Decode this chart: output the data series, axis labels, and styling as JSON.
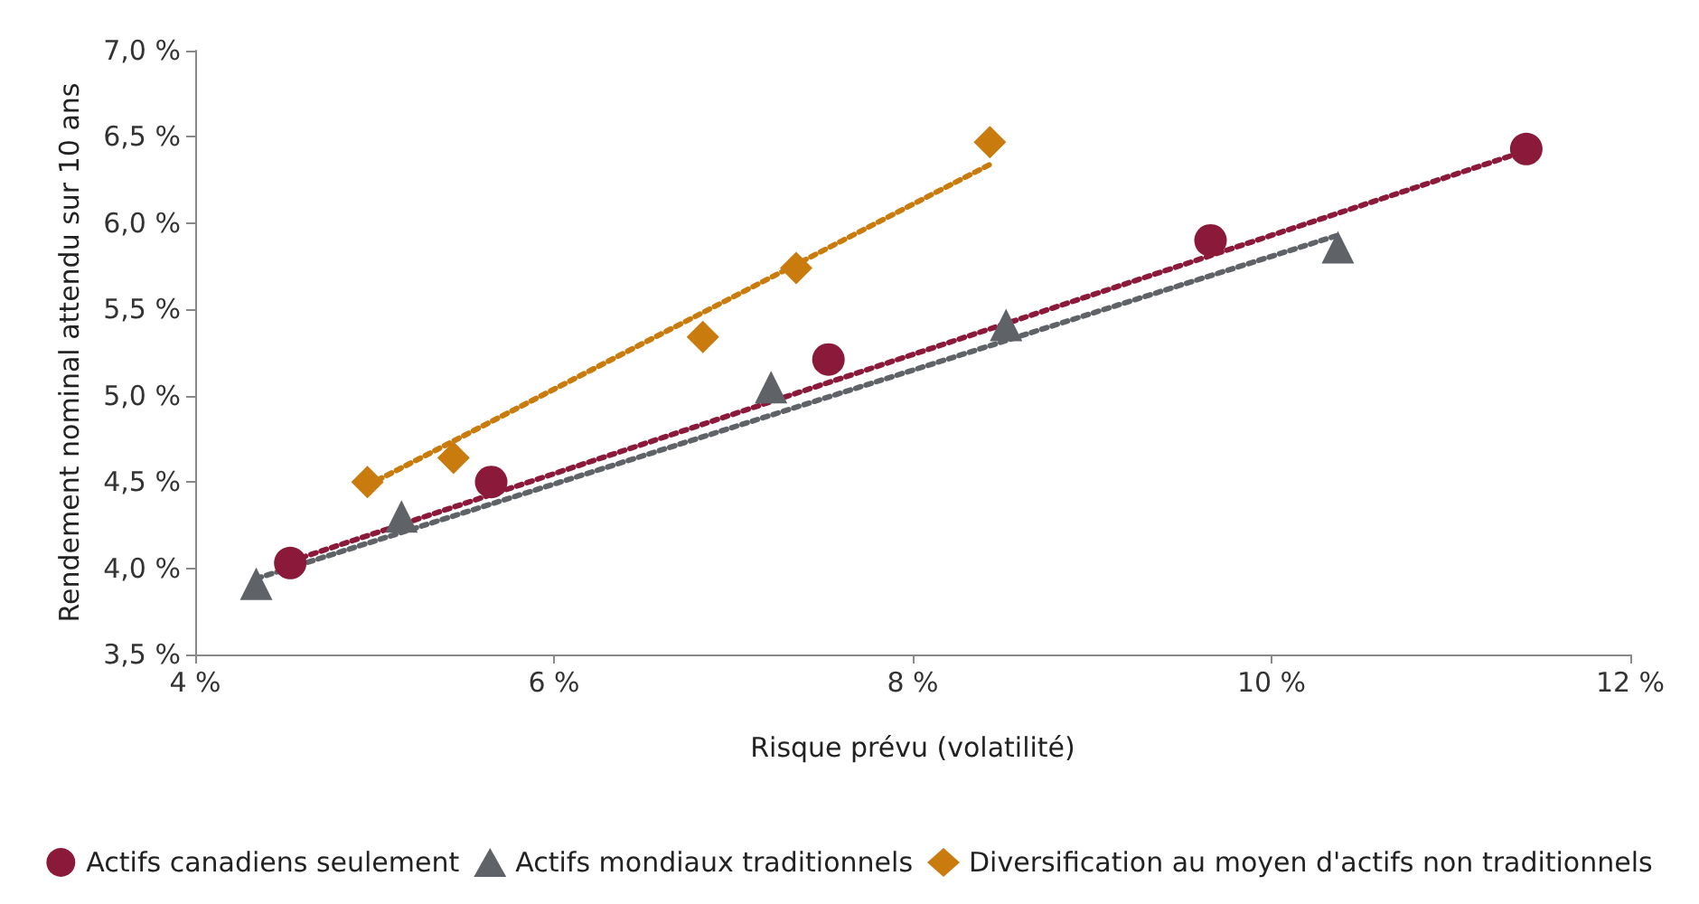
{
  "chart_data": {
    "type": "scatter",
    "xlabel": "Risque prévu (volatilité)",
    "ylabel": "Rendement nominal attendu sur 10 ans",
    "xlim": [
      4,
      12
    ],
    "xticks": [
      {
        "value": 4,
        "label": "4 %"
      },
      {
        "value": 6,
        "label": "6 %"
      },
      {
        "value": 8,
        "label": "8 %"
      },
      {
        "value": 10,
        "label": "10 %"
      },
      {
        "value": 12,
        "label": "12 %"
      }
    ],
    "ylim": [
      3.5,
      7
    ],
    "yticks": [
      {
        "value": 3.5,
        "label": "3,5 %"
      },
      {
        "value": 4,
        "label": "4,0 %"
      },
      {
        "value": 4.5,
        "label": "4,5 %"
      },
      {
        "value": 5,
        "label": "5,0 %"
      },
      {
        "value": 5.5,
        "label": "5,5 %"
      },
      {
        "value": 6,
        "label": "6,0 %"
      },
      {
        "value": 6.5,
        "label": "6,5 %"
      },
      {
        "value": 7,
        "label": "7,0 %"
      }
    ],
    "grid": false,
    "legend": "bottom",
    "series": [
      {
        "type": "line",
        "color": "#8b1a3a",
        "line_style": "dotted",
        "marker": "none",
        "x": [
          4.53,
          11.42
        ],
        "values": [
          4.04,
          6.42
        ]
      },
      {
        "type": "line",
        "color": "#5f6368",
        "line_style": "dotted",
        "marker": "none",
        "x": [
          4.34,
          10.37
        ],
        "values": [
          3.94,
          5.93
        ]
      },
      {
        "type": "line",
        "color": "#c97c0d",
        "line_style": "dotted",
        "marker": "none",
        "x": [
          4.96,
          8.43
        ],
        "values": [
          4.48,
          6.34
        ]
      },
      {
        "name": "Actifs canadiens seulement",
        "color": "#8b1a3a",
        "marker": "circle",
        "x": [
          4.53,
          5.65,
          7.53,
          9.66,
          11.42
        ],
        "values": [
          4.03,
          4.5,
          5.21,
          5.9,
          6.43
        ]
      },
      {
        "name": "Actifs mondiaux traditionnels",
        "color": "#5f6368",
        "marker": "triangle",
        "x": [
          4.34,
          5.15,
          7.21,
          8.52,
          10.37
        ],
        "values": [
          3.91,
          4.3,
          5.05,
          5.41,
          5.86
        ]
      },
      {
        "name": "Diversification au moyen d'actifs non traditionnels",
        "color": "#c97c0d",
        "marker": "diamond",
        "x": [
          4.96,
          5.44,
          6.83,
          7.35,
          8.43
        ],
        "values": [
          4.5,
          4.64,
          5.34,
          5.74,
          6.47
        ]
      }
    ]
  }
}
